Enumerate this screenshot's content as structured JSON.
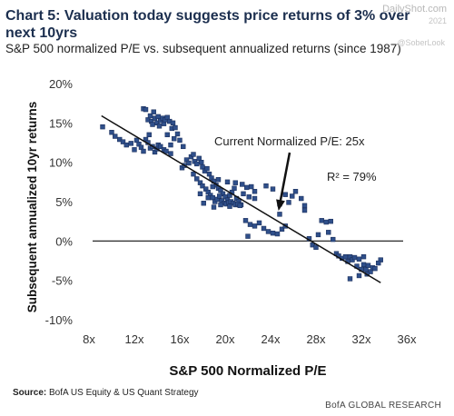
{
  "header": {
    "title": "Chart 5: Valuation today suggests price returns of 3% over next 10yrs",
    "subtitle": "S&P 500 normalized P/E vs. subsequent annualized returns (since 1987)"
  },
  "watermark": {
    "site": "DailyShot.com",
    "date": "2021",
    "handle": "@SoberLook"
  },
  "source": {
    "label": "Source:",
    "text": "BofA US Equity & US Quant Strategy"
  },
  "footer": {
    "brand": "BofA GLOBAL RESEARCH"
  },
  "chart_data": {
    "type": "scatter",
    "xlabel": "S&P 500 Normalized P/E",
    "ylabel": "Subsequent annualized 10yr returns",
    "xlim": [
      8,
      36
    ],
    "ylim": [
      -10,
      20
    ],
    "x_ticks": [
      "8x",
      "12x",
      "16x",
      "20x",
      "24x",
      "28x",
      "32x",
      "36x"
    ],
    "y_ticks": [
      "-10%",
      "-5%",
      "0%",
      "5%",
      "10%",
      "15%",
      "20%"
    ],
    "annotations": {
      "current": "Current Normalized P/E: 25x",
      "r2": "R² = 79%"
    },
    "trendline": {
      "x": [
        9.1,
        33.7
      ],
      "y": [
        15.9,
        -5.3
      ]
    },
    "colors": {
      "marker": "#2f4f8a",
      "marker_edge": "#1b2f5c",
      "line": "#111111"
    },
    "points": [
      [
        9.2,
        14.5
      ],
      [
        10.0,
        13.8
      ],
      [
        10.3,
        13.3
      ],
      [
        10.7,
        12.9
      ],
      [
        11.0,
        12.6
      ],
      [
        11.3,
        12.2
      ],
      [
        11.7,
        12.4
      ],
      [
        12.0,
        11.6
      ],
      [
        12.2,
        12.8
      ],
      [
        12.4,
        12.3
      ],
      [
        12.6,
        11.9
      ],
      [
        12.8,
        11.4
      ],
      [
        13.0,
        12.9
      ],
      [
        13.2,
        12.5
      ],
      [
        13.4,
        11.8
      ],
      [
        13.6,
        12.0
      ],
      [
        13.8,
        11.3
      ],
      [
        14.0,
        11.7
      ],
      [
        14.1,
        12.2
      ],
      [
        14.3,
        12.0
      ],
      [
        14.6,
        11.6
      ],
      [
        14.8,
        11.4
      ],
      [
        15.2,
        11.1
      ],
      [
        12.8,
        16.8
      ],
      [
        13.0,
        16.7
      ],
      [
        13.2,
        15.4
      ],
      [
        13.4,
        15.9
      ],
      [
        13.5,
        15.2
      ],
      [
        13.6,
        14.8
      ],
      [
        13.7,
        16.4
      ],
      [
        13.8,
        15.6
      ],
      [
        14.0,
        15.0
      ],
      [
        14.1,
        15.8
      ],
      [
        14.2,
        14.6
      ],
      [
        14.3,
        15.3
      ],
      [
        14.5,
        15.6
      ],
      [
        14.6,
        14.9
      ],
      [
        14.7,
        15.4
      ],
      [
        14.9,
        15.7
      ],
      [
        15.1,
        15.2
      ],
      [
        15.3,
        14.3
      ],
      [
        15.4,
        15.0
      ],
      [
        15.6,
        14.4
      ],
      [
        15.8,
        13.6
      ],
      [
        16.0,
        12.8
      ],
      [
        15.5,
        13.0
      ],
      [
        14.9,
        13.5
      ],
      [
        15.2,
        12.2
      ],
      [
        13.3,
        13.5
      ],
      [
        16.3,
        12.0
      ],
      [
        16.2,
        9.3
      ],
      [
        16.4,
        9.6
      ],
      [
        16.6,
        10.3
      ],
      [
        16.8,
        9.9
      ],
      [
        17.0,
        10.7
      ],
      [
        17.2,
        11.0
      ],
      [
        17.3,
        10.1
      ],
      [
        17.5,
        9.8
      ],
      [
        17.7,
        10.5
      ],
      [
        17.9,
        10.0
      ],
      [
        18.0,
        9.4
      ],
      [
        18.2,
        8.9
      ],
      [
        18.4,
        9.2
      ],
      [
        18.6,
        8.5
      ],
      [
        18.8,
        8.0
      ],
      [
        19.0,
        7.6
      ],
      [
        19.2,
        7.1
      ],
      [
        19.4,
        6.7
      ],
      [
        19.6,
        6.4
      ],
      [
        19.8,
        6.0
      ],
      [
        20.0,
        5.6
      ],
      [
        20.2,
        5.2
      ],
      [
        20.4,
        5.8
      ],
      [
        20.6,
        6.2
      ],
      [
        20.8,
        6.7
      ],
      [
        21.0,
        5.4
      ],
      [
        21.2,
        5.0
      ],
      [
        21.4,
        4.6
      ],
      [
        17.2,
        8.5
      ],
      [
        17.5,
        7.9
      ],
      [
        17.8,
        7.4
      ],
      [
        18.0,
        7.0
      ],
      [
        18.3,
        6.6
      ],
      [
        18.5,
        6.2
      ],
      [
        18.7,
        5.8
      ],
      [
        18.9,
        5.5
      ],
      [
        19.1,
        5.0
      ],
      [
        19.3,
        5.3
      ],
      [
        19.5,
        5.7
      ],
      [
        19.7,
        5.1
      ],
      [
        19.9,
        4.8
      ],
      [
        20.1,
        4.7
      ],
      [
        20.3,
        4.9
      ],
      [
        20.5,
        5.0
      ],
      [
        20.7,
        4.8
      ],
      [
        20.9,
        4.6
      ],
      [
        21.1,
        4.7
      ],
      [
        21.3,
        4.5
      ],
      [
        19.6,
        4.6
      ],
      [
        19.0,
        4.3
      ],
      [
        20.4,
        4.4
      ],
      [
        18.5,
        5.5
      ],
      [
        17.8,
        6.0
      ],
      [
        18.1,
        4.8
      ],
      [
        18.9,
        6.9
      ],
      [
        19.4,
        7.8
      ],
      [
        20.2,
        7.5
      ],
      [
        20.9,
        7.4
      ],
      [
        21.5,
        7.2
      ],
      [
        21.9,
        6.8
      ],
      [
        22.3,
        6.9
      ],
      [
        22.6,
        6.3
      ],
      [
        21.6,
        6.0
      ],
      [
        22.1,
        5.6
      ],
      [
        22.6,
        5.4
      ],
      [
        21.8,
        2.6
      ],
      [
        22.2,
        2.1
      ],
      [
        22.6,
        1.9
      ],
      [
        23.0,
        2.3
      ],
      [
        23.4,
        1.6
      ],
      [
        23.8,
        1.2
      ],
      [
        24.2,
        1.0
      ],
      [
        24.6,
        0.9
      ],
      [
        25.0,
        1.5
      ],
      [
        25.3,
        1.9
      ],
      [
        23.6,
        7.0
      ],
      [
        24.2,
        6.6
      ],
      [
        25.3,
        5.9
      ],
      [
        25.9,
        5.7
      ],
      [
        24.8,
        4.7
      ],
      [
        25.6,
        4.9
      ],
      [
        26.7,
        5.4
      ],
      [
        27.0,
        4.5
      ],
      [
        27.0,
        3.9
      ],
      [
        26.2,
        6.3
      ],
      [
        22.0,
        0.6
      ],
      [
        24.8,
        3.4
      ],
      [
        27.4,
        0.3
      ],
      [
        27.7,
        -0.5
      ],
      [
        28.0,
        -0.8
      ],
      [
        28.2,
        0.8
      ],
      [
        28.5,
        2.6
      ],
      [
        28.9,
        2.4
      ],
      [
        29.3,
        2.5
      ],
      [
        29.1,
        1.1
      ],
      [
        29.5,
        0.2
      ],
      [
        29.8,
        -1.6
      ],
      [
        30.0,
        -1.9
      ],
      [
        30.3,
        -2.2
      ],
      [
        30.6,
        -2.0
      ],
      [
        30.8,
        -2.6
      ],
      [
        31.0,
        -2.0
      ],
      [
        31.2,
        -2.4
      ],
      [
        31.4,
        -2.1
      ],
      [
        31.6,
        -3.2
      ],
      [
        31.8,
        -2.3
      ],
      [
        32.0,
        -3.6
      ],
      [
        32.2,
        -3.0
      ],
      [
        32.4,
        -3.6
      ],
      [
        32.6,
        -3.1
      ],
      [
        32.8,
        -3.9
      ],
      [
        33.0,
        -3.4
      ],
      [
        33.2,
        -3.5
      ],
      [
        31.0,
        -4.8
      ],
      [
        31.8,
        -4.4
      ],
      [
        32.2,
        -2.0
      ],
      [
        32.5,
        -4.2
      ],
      [
        33.7,
        -2.4
      ],
      [
        33.5,
        -2.8
      ]
    ]
  }
}
